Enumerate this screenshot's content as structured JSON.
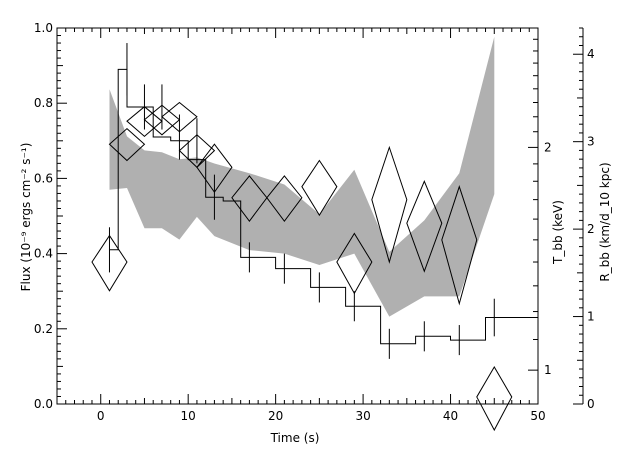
{
  "chart_data": {
    "type": "line",
    "xlabel": "Time (s)",
    "ylabel_left": "Flux (10⁻⁹ ergs cm⁻² s⁻¹)",
    "ylabel_right_temp": "T_bb (keV)",
    "ylabel_right_radius": "R_bb (km/d_10 kpc)",
    "xlim": [
      -5,
      50
    ],
    "ylim": [
      0.0,
      1.0
    ],
    "temp_axis_log_range": [
      0.9,
      2.9
    ],
    "radius_axis_range": [
      0,
      4.3
    ],
    "x_tick_labels": [
      "0",
      "10",
      "20",
      "30",
      "40",
      "50"
    ],
    "y_tick_labels": [
      "0.0",
      "0.2",
      "0.4",
      "0.6",
      "0.8",
      "1.0"
    ],
    "temp_tick_labels": [
      "1",
      "2"
    ],
    "radius_tick_labels": [
      "0",
      "1",
      "2",
      "3",
      "4"
    ],
    "flux_histogram": {
      "name": "Flux",
      "edges": [
        1,
        2,
        3,
        4,
        6,
        8,
        10,
        12,
        14,
        16,
        20,
        24,
        28,
        32,
        36,
        40,
        44,
        50
      ],
      "values": [
        0.41,
        0.89,
        0.79,
        0.79,
        0.71,
        0.7,
        0.65,
        0.55,
        0.54,
        0.39,
        0.36,
        0.31,
        0.26,
        0.16,
        0.18,
        0.17,
        0.23
      ],
      "errorbars": [
        {
          "x": 1,
          "y": 0.41,
          "yerr": 0.06
        },
        {
          "x": 3,
          "y": 0.89,
          "yerr": 0.07
        },
        {
          "x": 5,
          "y": 0.79,
          "yerr": 0.06
        },
        {
          "x": 7,
          "y": 0.79,
          "yerr": 0.06
        },
        {
          "x": 9,
          "y": 0.71,
          "yerr": 0.06
        },
        {
          "x": 11,
          "y": 0.7,
          "yerr": 0.06
        },
        {
          "x": 13,
          "y": 0.55,
          "yerr": 0.06
        },
        {
          "x": 17,
          "y": 0.39,
          "yerr": 0.04
        },
        {
          "x": 21,
          "y": 0.36,
          "yerr": 0.04
        },
        {
          "x": 25,
          "y": 0.31,
          "yerr": 0.04
        },
        {
          "x": 29,
          "y": 0.26,
          "yerr": 0.04
        },
        {
          "x": 33,
          "y": 0.16,
          "yerr": 0.04
        },
        {
          "x": 37,
          "y": 0.18,
          "yerr": 0.04
        },
        {
          "x": 41,
          "y": 0.17,
          "yerr": 0.04
        },
        {
          "x": 45,
          "y": 0.23,
          "yerr": 0.05
        }
      ]
    },
    "temperature_diamonds": {
      "name": "T_bb",
      "points": [
        {
          "x": 1,
          "T": 1.4,
          "terr": 0.12
        },
        {
          "x": 3,
          "T": 2.02,
          "terr": 0.1
        },
        {
          "x": 5,
          "T": 2.17,
          "terr": 0.1
        },
        {
          "x": 7,
          "T": 2.18,
          "terr": 0.1
        },
        {
          "x": 9,
          "T": 2.2,
          "terr": 0.1
        },
        {
          "x": 11,
          "T": 1.98,
          "terr": 0.1
        },
        {
          "x": 13,
          "T": 1.88,
          "terr": 0.14
        },
        {
          "x": 17,
          "T": 1.71,
          "terr": 0.12
        },
        {
          "x": 21,
          "T": 1.71,
          "terr": 0.12
        },
        {
          "x": 25,
          "T": 1.77,
          "terr": 0.15
        },
        {
          "x": 29,
          "T": 1.4,
          "terr": 0.13
        },
        {
          "x": 33,
          "T": 1.7,
          "terr": 0.3
        },
        {
          "x": 37,
          "T": 1.58,
          "terr": 0.22
        },
        {
          "x": 41,
          "T": 1.5,
          "terr": 0.27
        },
        {
          "x": 45,
          "T": 0.92,
          "terr": 0.09
        }
      ]
    },
    "radius_band": {
      "name": "R_bb",
      "x": [
        1,
        3,
        5,
        7,
        9,
        11,
        13,
        17,
        21,
        25,
        29,
        33,
        37,
        41,
        45
      ],
      "upper": [
        3.6,
        3.06,
        2.9,
        2.88,
        2.8,
        2.82,
        2.75,
        2.64,
        2.51,
        2.17,
        2.68,
        1.74,
        2.1,
        2.64,
        4.2
      ],
      "lower": [
        2.45,
        2.47,
        2.01,
        2.01,
        1.88,
        2.14,
        1.92,
        1.76,
        1.72,
        1.59,
        1.72,
        1.0,
        1.23,
        1.23,
        2.4
      ]
    }
  }
}
